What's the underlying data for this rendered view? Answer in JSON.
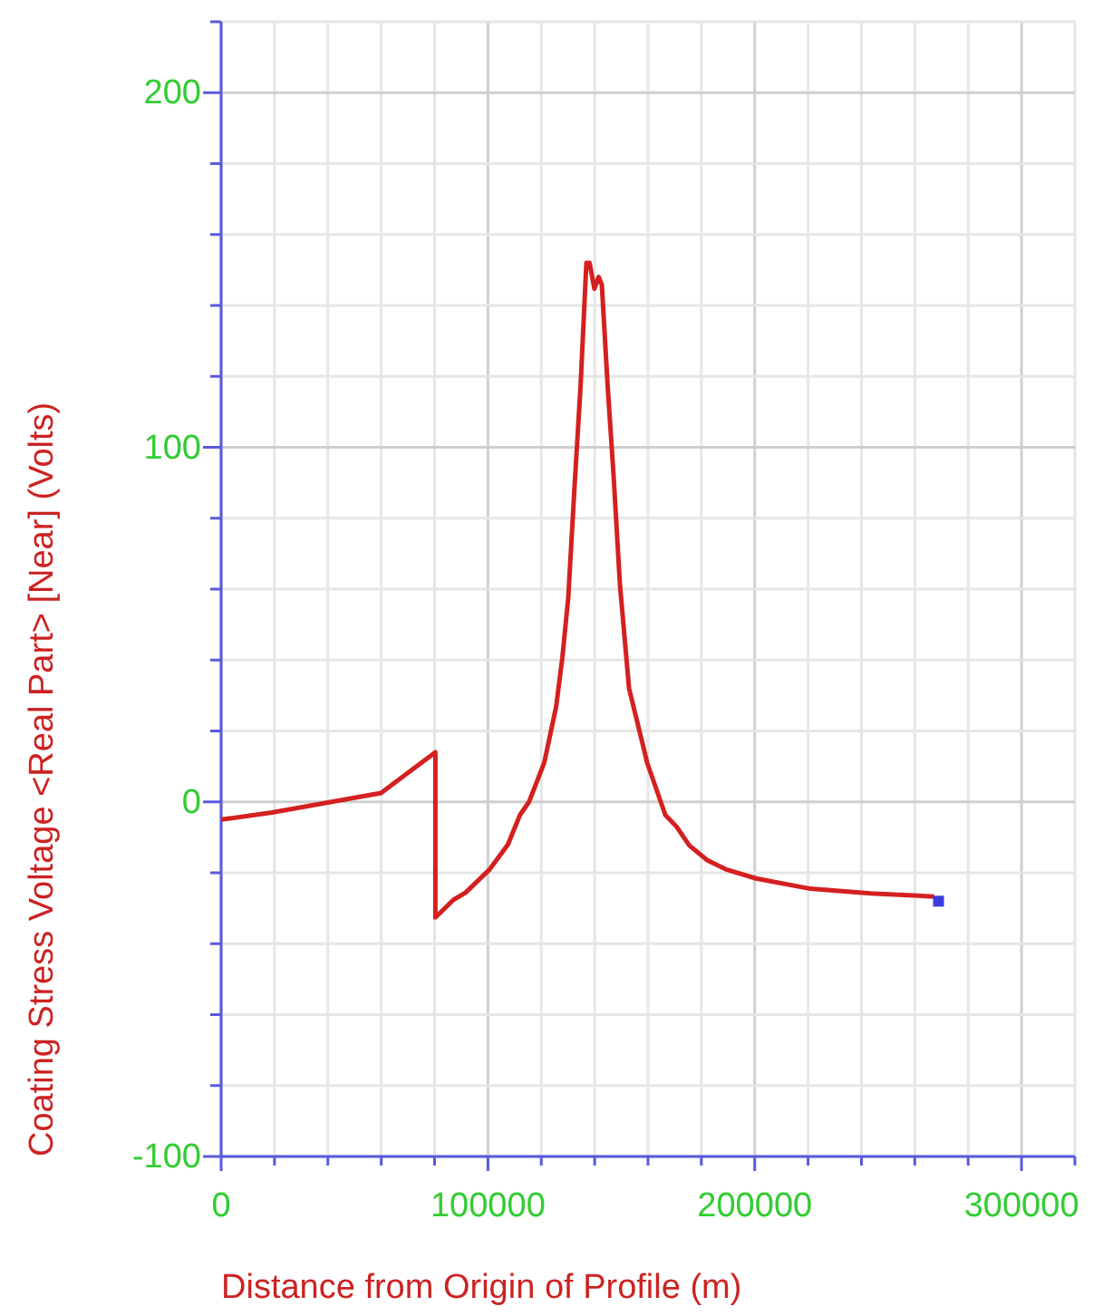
{
  "chart_data": {
    "type": "line",
    "xlabel": "Distance from Origin of Profile (m)",
    "ylabel": "Coating Stress Voltage <Real Part> [Near] (Volts)",
    "xlim": [
      0,
      320000
    ],
    "ylim": [
      -100,
      220
    ],
    "xticks": [
      0,
      {
        "value": 20000,
        "label": null
      },
      {
        "value": 40000,
        "label": null
      },
      {
        "value": 60000,
        "label": null
      },
      {
        "value": 80000,
        "label": null
      },
      100000,
      {
        "value": 120000,
        "label": null
      },
      {
        "value": 140000,
        "label": null
      },
      {
        "value": 160000,
        "label": null
      },
      {
        "value": 180000,
        "label": null
      },
      200000,
      {
        "value": 220000,
        "label": null
      },
      {
        "value": 240000,
        "label": null
      },
      {
        "value": 260000,
        "label": null
      },
      {
        "value": 280000,
        "label": null
      },
      300000,
      {
        "value": 320000,
        "label": null
      }
    ],
    "yticks": [
      -100,
      {
        "value": -80,
        "label": null
      },
      {
        "value": -60,
        "label": null
      },
      {
        "value": -40,
        "label": null
      },
      {
        "value": -20,
        "label": null
      },
      0,
      {
        "value": 20,
        "label": null
      },
      {
        "value": 40,
        "label": null
      },
      {
        "value": 60,
        "label": null
      },
      {
        "value": 80,
        "label": null
      },
      100,
      {
        "value": 120,
        "label": null
      },
      {
        "value": 140,
        "label": null
      },
      {
        "value": 160,
        "label": null
      },
      {
        "value": 180,
        "label": null
      },
      200,
      {
        "value": 220,
        "label": null
      }
    ],
    "grid": true,
    "series": [
      {
        "color": "#d42020",
        "x": [
          0,
          19000,
          59900,
          80300,
          80300,
          87100,
          91600,
          100700,
          107500,
          112000,
          115400,
          121100,
          125600,
          127900,
          130100,
          132400,
          134700,
          136900,
          138100,
          139900,
          141500,
          142700,
          144900,
          147100,
          149500,
          152900,
          159700,
          166500,
          170700,
          175500,
          182300,
          189100,
          200500,
          220900,
          243500,
          267300
        ],
        "values": [
          -5,
          -3,
          2.5,
          14,
          -32.6,
          -27.6,
          -25.6,
          -19,
          -12,
          -3.7,
          0,
          11,
          27,
          40.7,
          57.5,
          88,
          117,
          152,
          152,
          144.7,
          148,
          145.8,
          117,
          92,
          61,
          32,
          11,
          -3.7,
          -7,
          -12.3,
          -16.5,
          -19,
          -21.6,
          -24.5,
          -25.8,
          -26.7
        ]
      },
      {
        "type": "scatter",
        "marker": "square",
        "color": "#3b3bdd",
        "x": [
          268900
        ],
        "values": [
          -28
        ]
      }
    ]
  }
}
